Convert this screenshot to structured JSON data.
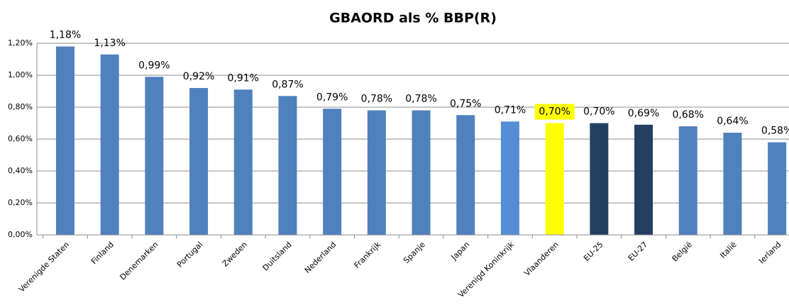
{
  "chart_data": {
    "type": "bar",
    "title": "GBAORD als % BBP(R)",
    "categories": [
      "Verenigde Staten",
      "Finland",
      "Denemarken",
      "Portugal",
      "Zweden",
      "Duitsland",
      "Nederland",
      "Frankrijk",
      "Spanje",
      "Japan",
      "Verenigd Koninkrijk",
      "Vlaanderen",
      "EU-25",
      "EU-27",
      "België",
      "Italië",
      "Ierland"
    ],
    "values": [
      1.18,
      1.13,
      0.99,
      0.92,
      0.91,
      0.87,
      0.79,
      0.78,
      0.78,
      0.75,
      0.71,
      0.7,
      0.7,
      0.69,
      0.68,
      0.64,
      0.58
    ],
    "value_labels": [
      "1,18%",
      "1,13%",
      "0,99%",
      "0,92%",
      "0,91%",
      "0,87%",
      "0,79%",
      "0,78%",
      "0,78%",
      "0,75%",
      "0,71%",
      "0,70%",
      "0,70%",
      "0,69%",
      "0,68%",
      "0,64%",
      "0,58%"
    ],
    "colors": [
      "#4f81bd",
      "#4f81bd",
      "#4f81bd",
      "#4f81bd",
      "#4f81bd",
      "#4f81bd",
      "#4f81bd",
      "#4f81bd",
      "#4f81bd",
      "#4f81bd",
      "#558ed5",
      "#ffff00",
      "#243f60",
      "#243f60",
      "#4f81bd",
      "#4f81bd",
      "#4f81bd"
    ],
    "ylim": [
      0,
      1.2
    ],
    "yticks": [
      {
        "value": 0,
        "label": "0,00%"
      },
      {
        "value": 0.2,
        "label": "0,20%"
      },
      {
        "value": 0.4,
        "label": "0,40%"
      },
      {
        "value": 0.6,
        "label": "0,60%"
      },
      {
        "value": 0.8,
        "label": "0,80%"
      },
      {
        "value": 1.0,
        "label": "1,00%"
      },
      {
        "value": 1.2,
        "label": "1,20%"
      }
    ],
    "grid": true
  }
}
